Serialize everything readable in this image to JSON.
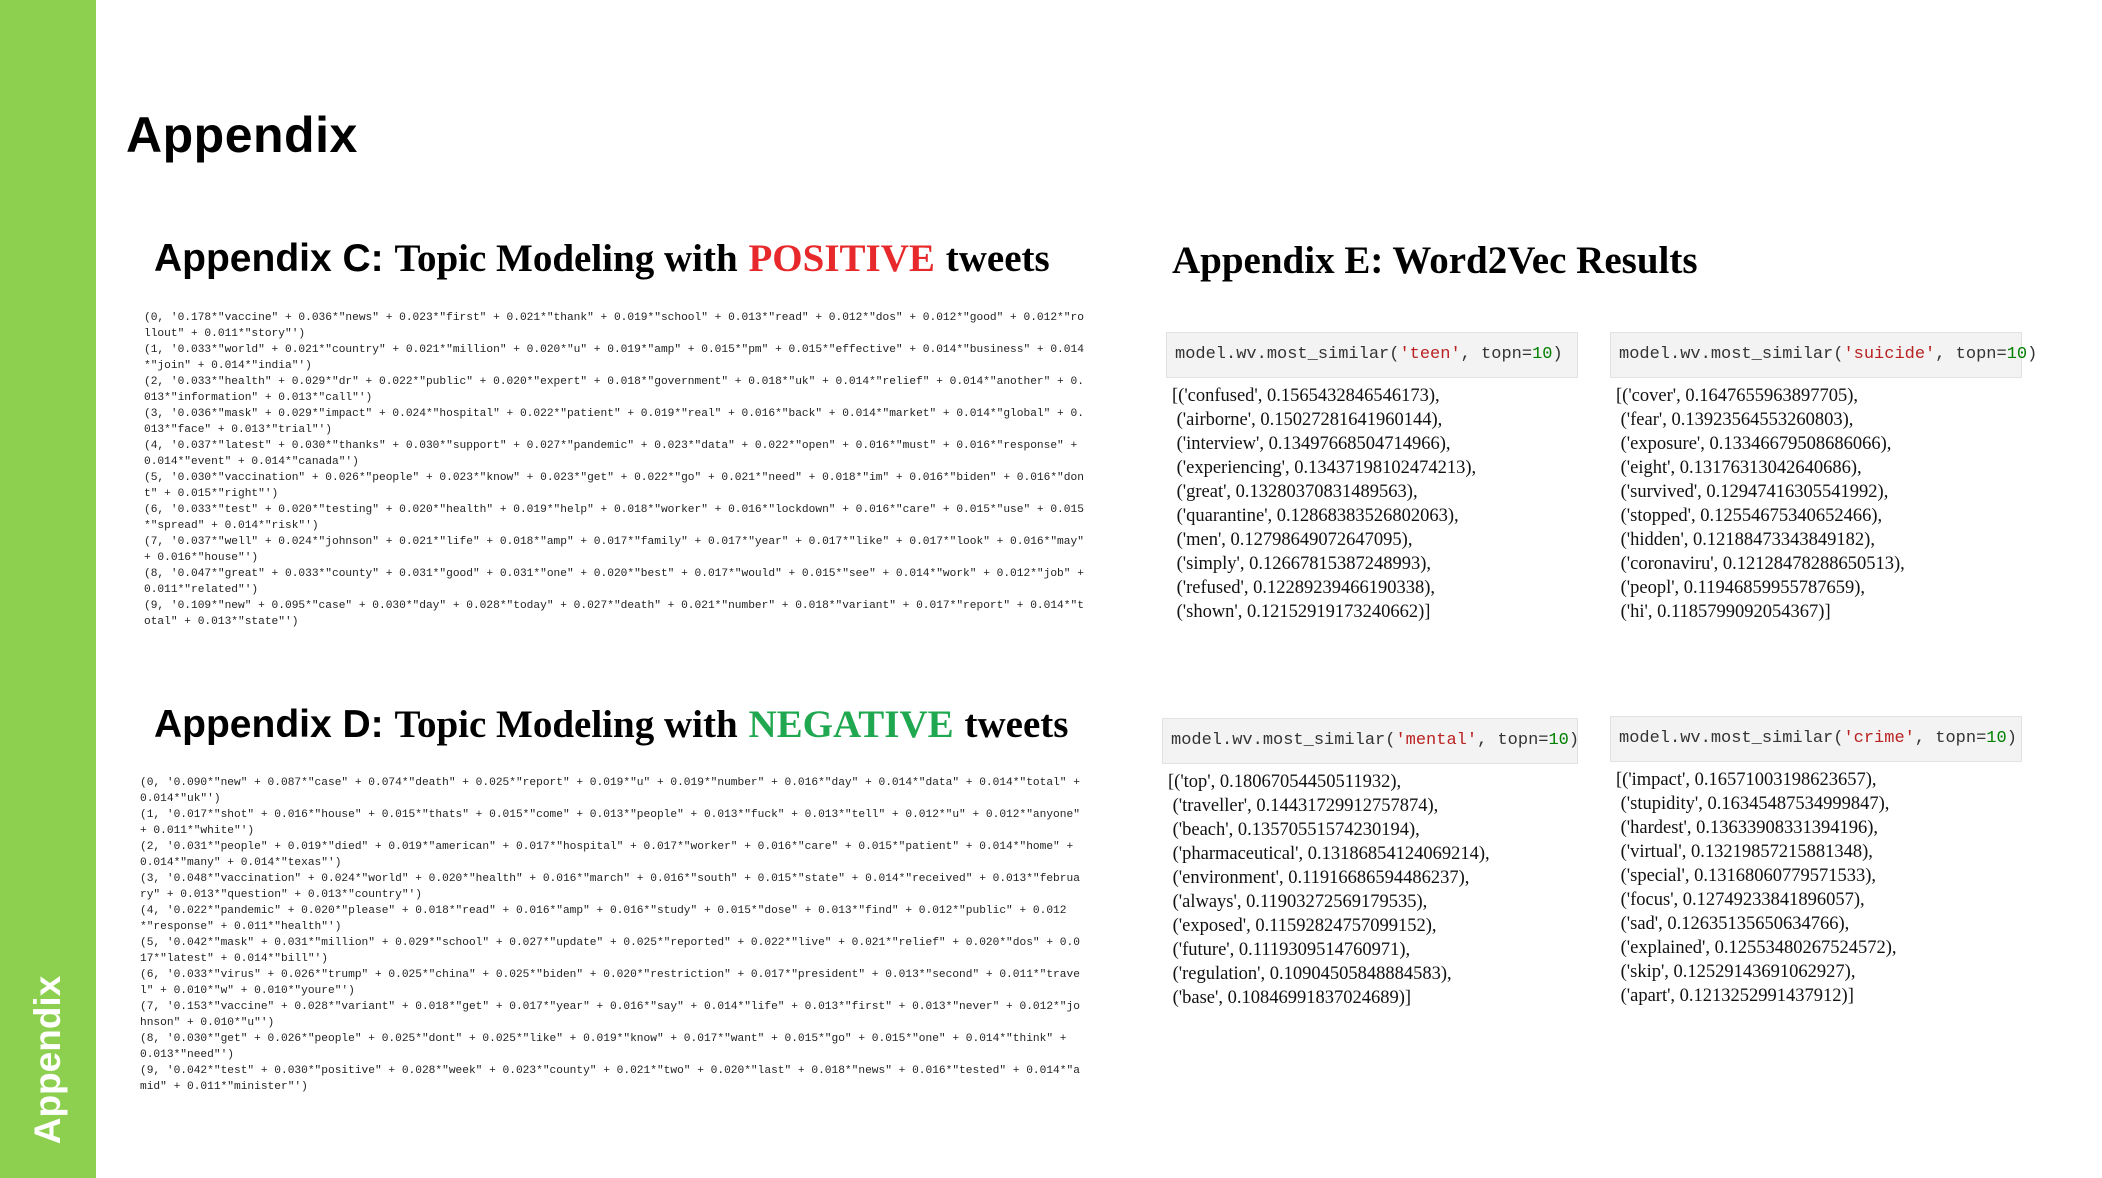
{
  "sidebar": {
    "label": "Appendix"
  },
  "title": "Appendix",
  "appendix_c": {
    "lead": "Appendix C:",
    "text": "Topic Modeling with",
    "highlight": "POSITIVE",
    "tail": "tweets",
    "lines": [
      "(0, '0.178*\"vaccine\" + 0.036*\"news\" + 0.023*\"first\" + 0.021*\"thank\" + 0.019*\"school\" + 0.013*\"read\" + 0.012*\"dos\" + 0.012*\"good\" + 0.012*\"ro",
      "llout\" + 0.011*\"story\"')",
      "(1, '0.033*\"world\" + 0.021*\"country\" + 0.021*\"million\" + 0.020*\"u\" + 0.019*\"amp\" + 0.015*\"pm\" + 0.015*\"effective\" + 0.014*\"business\" + 0.014",
      "*\"join\" + 0.014*\"india\"')",
      "(2, '0.033*\"health\" + 0.029*\"dr\" + 0.022*\"public\" + 0.020*\"expert\" + 0.018*\"government\" + 0.018*\"uk\" + 0.014*\"relief\" + 0.014*\"another\" + 0.",
      "013*\"information\" + 0.013*\"call\"')",
      "(3, '0.036*\"mask\" + 0.029*\"impact\" + 0.024*\"hospital\" + 0.022*\"patient\" + 0.019*\"real\" + 0.016*\"back\" + 0.014*\"market\" + 0.014*\"global\" + 0.",
      "013*\"face\" + 0.013*\"trial\"')",
      "(4, '0.037*\"latest\" + 0.030*\"thanks\" + 0.030*\"support\" + 0.027*\"pandemic\" + 0.023*\"data\" + 0.022*\"open\" + 0.016*\"must\" + 0.016*\"response\" +",
      "0.014*\"event\" + 0.014*\"canada\"')",
      "(5, '0.030*\"vaccination\" + 0.026*\"people\" + 0.023*\"know\" + 0.023*\"get\" + 0.022*\"go\" + 0.021*\"need\" + 0.018*\"im\" + 0.016*\"biden\" + 0.016*\"don",
      "t\" + 0.015*\"right\"')",
      "(6, '0.033*\"test\" + 0.020*\"testing\" + 0.020*\"health\" + 0.019*\"help\" + 0.018*\"worker\" + 0.016*\"lockdown\" + 0.016*\"care\" + 0.015*\"use\" + 0.015",
      "*\"spread\" + 0.014*\"risk\"')",
      "(7, '0.037*\"well\" + 0.024*\"johnson\" + 0.021*\"life\" + 0.018*\"amp\" + 0.017*\"family\" + 0.017*\"year\" + 0.017*\"like\" + 0.017*\"look\" + 0.016*\"may\"",
      "+ 0.016*\"house\"')",
      "(8, '0.047*\"great\" + 0.033*\"county\" + 0.031*\"good\" + 0.031*\"one\" + 0.020*\"best\" + 0.017*\"would\" + 0.015*\"see\" + 0.014*\"work\" + 0.012*\"job\" +",
      "0.011*\"related\"')",
      "(9, '0.109*\"new\" + 0.095*\"case\" + 0.030*\"day\" + 0.028*\"today\" + 0.027*\"death\" + 0.021*\"number\" + 0.018*\"variant\" + 0.017*\"report\" + 0.014*\"t",
      "otal\" + 0.013*\"state\"')"
    ]
  },
  "appendix_d": {
    "lead": "Appendix D:",
    "text": "Topic Modeling with",
    "highlight": "NEGATIVE",
    "tail": "tweets",
    "lines": [
      "(0, '0.090*\"new\" + 0.087*\"case\" + 0.074*\"death\" + 0.025*\"report\" + 0.019*\"u\" + 0.019*\"number\" + 0.016*\"day\" + 0.014*\"data\" + 0.014*\"total\" +",
      "0.014*\"uk\"')",
      "(1, '0.017*\"shot\" + 0.016*\"house\" + 0.015*\"thats\" + 0.015*\"come\" + 0.013*\"people\" + 0.013*\"fuck\" + 0.013*\"tell\" + 0.012*\"u\" + 0.012*\"anyone\"",
      "+ 0.011*\"white\"')",
      "(2, '0.031*\"people\" + 0.019*\"died\" + 0.019*\"american\" + 0.017*\"hospital\" + 0.017*\"worker\" + 0.016*\"care\" + 0.015*\"patient\" + 0.014*\"home\" +",
      "0.014*\"many\" + 0.014*\"texas\"')",
      "(3, '0.048*\"vaccination\" + 0.024*\"world\" + 0.020*\"health\" + 0.016*\"march\" + 0.016*\"south\" + 0.015*\"state\" + 0.014*\"received\" + 0.013*\"februa",
      "ry\" + 0.013*\"question\" + 0.013*\"country\"')",
      "(4, '0.022*\"pandemic\" + 0.020*\"please\" + 0.018*\"read\" + 0.016*\"amp\" + 0.016*\"study\" + 0.015*\"dose\" + 0.013*\"find\" + 0.012*\"public\" + 0.012",
      "*\"response\" + 0.011*\"health\"')",
      "(5, '0.042*\"mask\" + 0.031*\"million\" + 0.029*\"school\" + 0.027*\"update\" + 0.025*\"reported\" + 0.022*\"live\" + 0.021*\"relief\" + 0.020*\"dos\" + 0.0",
      "17*\"latest\" + 0.014*\"bill\"')",
      "(6, '0.033*\"virus\" + 0.026*\"trump\" + 0.025*\"china\" + 0.025*\"biden\" + 0.020*\"restriction\" + 0.017*\"president\" + 0.013*\"second\" + 0.011*\"trave",
      "l\" + 0.010*\"w\" + 0.010*\"youre\"')",
      "(7, '0.153*\"vaccine\" + 0.028*\"variant\" + 0.018*\"get\" + 0.017*\"year\" + 0.016*\"say\" + 0.014*\"life\" + 0.013*\"first\" + 0.013*\"never\" + 0.012*\"jo",
      "hnson\" + 0.010*\"u\"')",
      "(8, '0.030*\"get\" + 0.026*\"people\" + 0.025*\"dont\" + 0.025*\"like\" + 0.019*\"know\" + 0.017*\"want\" + 0.015*\"go\" + 0.015*\"one\" + 0.014*\"think\" +",
      "0.013*\"need\"')",
      "(9, '0.042*\"test\" + 0.030*\"positive\" + 0.028*\"week\" + 0.023*\"county\" + 0.021*\"two\" + 0.020*\"last\" + 0.018*\"news\" + 0.016*\"tested\" + 0.014*\"a",
      "mid\" + 0.011*\"minister\"')"
    ]
  },
  "appendix_e": {
    "title": "Appendix E: Word2Vec Results",
    "panels": [
      {
        "call_prefix": "model.wv.most_similar(",
        "arg": "'teen'",
        "topn": ", topn=",
        "topn_value": "10",
        "close": ")",
        "results": "[('confused', 0.1565432846546173),\n ('airborne', 0.15027281641960144),\n ('interview', 0.13497668504714966),\n ('experiencing', 0.13437198102474213),\n ('great', 0.13280370831489563),\n ('quarantine', 0.12868383526802063),\n ('men', 0.12798649072647095),\n ('simply', 0.12667815387248993),\n ('refused', 0.12289239466190338),\n ('shown', 0.12152919173240662)]"
      },
      {
        "call_prefix": "model.wv.most_similar(",
        "arg": "'suicide'",
        "topn": ", topn=",
        "topn_value": "10",
        "close": ")",
        "results": "[('cover', 0.1647655963897705),\n ('fear', 0.13923564553260803),\n ('exposure', 0.13346679508686066),\n ('eight', 0.13176313042640686),\n ('survived', 0.12947416305541992),\n ('stopped', 0.12554675340652466),\n ('hidden', 0.12188473343849182),\n ('coronaviru', 0.12128478288650513),\n ('peopl', 0.11946859955787659),\n ('hi', 0.1185799092054367)]"
      },
      {
        "call_prefix": "model.wv.most_similar(",
        "arg": "'mental'",
        "topn": ", topn=",
        "topn_value": "10",
        "close": ")",
        "results": "[('top', 0.18067054450511932),\n ('traveller', 0.14431729912757874),\n ('beach', 0.13570551574230194),\n ('pharmaceutical', 0.13186854124069214),\n ('environment', 0.11916686594486237),\n ('always', 0.11903272569179535),\n ('exposed', 0.11592824757099152),\n ('future', 0.1119309514760971),\n ('regulation', 0.10904505848884583),\n ('base', 0.10846991837024689)]"
      },
      {
        "call_prefix": "model.wv.most_similar(",
        "arg": "'crime'",
        "topn": ", topn=",
        "topn_value": "10",
        "close": ")",
        "results": "[('impact', 0.16571003198623657),\n ('stupidity', 0.16345487534999847),\n ('hardest', 0.13633908331394196),\n ('virtual', 0.13219857215881348),\n ('special', 0.13168060779571533),\n ('focus', 0.12749233841896057),\n ('sad', 0.12635135650634766),\n ('explained', 0.12553480267524572),\n ('skip', 0.12529143691062927),\n ('apart', 0.1213252991437912)]"
      }
    ]
  }
}
